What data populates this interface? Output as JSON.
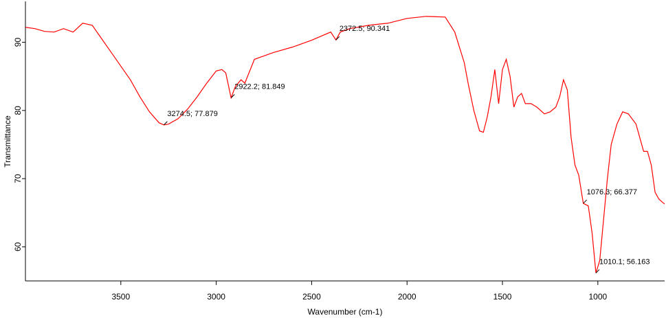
{
  "chart_data": {
    "type": "line",
    "xlabel": "Wavenumber (cm-1)",
    "ylabel": "Transmittance",
    "x": [
      4000,
      3950,
      3900,
      3850,
      3800,
      3750,
      3700,
      3650,
      3600,
      3550,
      3500,
      3450,
      3400,
      3350,
      3300,
      3274.5,
      3250,
      3200,
      3150,
      3100,
      3050,
      3000,
      2970,
      2950,
      2922.2,
      2900,
      2870,
      2850,
      2800,
      2700,
      2600,
      2500,
      2400,
      2372.5,
      2350,
      2300,
      2200,
      2100,
      2000,
      1900,
      1800,
      1750,
      1700,
      1680,
      1650,
      1620,
      1600,
      1580,
      1560,
      1540,
      1520,
      1500,
      1480,
      1460,
      1440,
      1420,
      1400,
      1380,
      1350,
      1320,
      1300,
      1280,
      1250,
      1220,
      1200,
      1180,
      1160,
      1140,
      1120,
      1100,
      1076.3,
      1050,
      1030,
      1010.1,
      990,
      970,
      950,
      930,
      900,
      870,
      840,
      800,
      780,
      760,
      740,
      720,
      700,
      680,
      660,
      650
    ],
    "series": [
      {
        "color": "#ff0000",
        "values": [
          92.2,
          92.0,
          91.6,
          91.5,
          92.0,
          91.5,
          92.8,
          92.5,
          90.5,
          88.5,
          86.5,
          84.5,
          82.0,
          79.8,
          78.2,
          77.879,
          78.0,
          78.8,
          80.2,
          82.0,
          84.0,
          85.8,
          86.0,
          85.5,
          81.849,
          83.5,
          84.5,
          84.0,
          87.5,
          88.5,
          89.3,
          90.3,
          91.5,
          90.341,
          91.5,
          92.0,
          92.5,
          92.8,
          93.5,
          93.8,
          93.7,
          91.5,
          87.0,
          84.0,
          80.0,
          77.0,
          76.8,
          79.0,
          82.0,
          86.0,
          81.0,
          86.0,
          87.5,
          85.0,
          80.5,
          82.0,
          82.5,
          81.0,
          81.0,
          80.5,
          80.0,
          79.5,
          79.8,
          80.5,
          82.0,
          84.5,
          83.0,
          76.0,
          72.0,
          70.5,
          66.377,
          66.0,
          62.0,
          56.163,
          58.0,
          64.0,
          70.0,
          75.0,
          78.0,
          79.8,
          79.5,
          78.0,
          76.0,
          74.0,
          74.0,
          72.0,
          68.0,
          67.0,
          66.5,
          66.3
        ]
      }
    ],
    "annotations": [
      {
        "x": 3274.5,
        "y": 77.879,
        "label": "3274.5; 77.879"
      },
      {
        "x": 2922.2,
        "y": 81.849,
        "label": "2922.2; 81.849"
      },
      {
        "x": 2372.5,
        "y": 90.341,
        "label": "2372.5; 90.341"
      },
      {
        "x": 1076.3,
        "y": 66.377,
        "label": "1076.3; 66.377"
      },
      {
        "x": 1010.1,
        "y": 56.163,
        "label": "1010.1; 56.163"
      }
    ],
    "xlim": [
      4000,
      650
    ],
    "xticks": [
      3500,
      3000,
      2500,
      2000,
      1500,
      1000
    ],
    "ylim": [
      55,
      96
    ],
    "yticks": [
      60,
      70,
      80,
      90
    ],
    "grid": false
  }
}
